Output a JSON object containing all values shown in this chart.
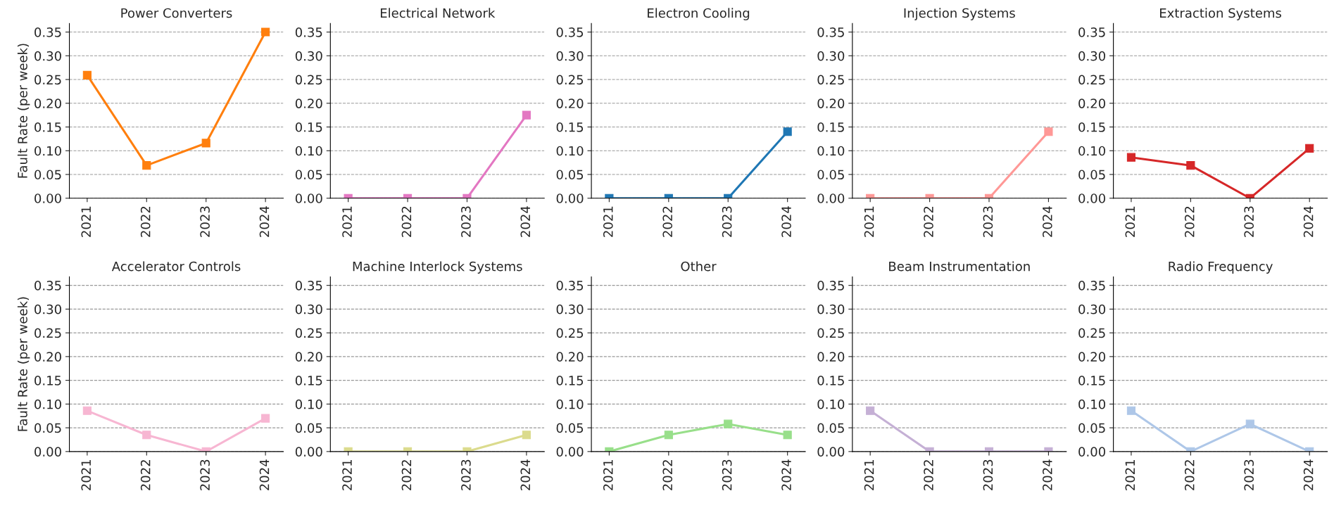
{
  "chart_data": [
    {
      "type": "line",
      "title": "Power Converters",
      "ylabel": "Fault Rate (per week)",
      "categories": [
        "2021",
        "2022",
        "2023",
        "2024"
      ],
      "series": [
        {
          "color": "#ff7f0e",
          "values": [
            0.259,
            0.069,
            0.116,
            0.35
          ]
        }
      ],
      "ylim": [
        0,
        0.368
      ],
      "yticks": [
        {
          "value": 0,
          "label": "0.00"
        },
        {
          "value": 0.05,
          "label": "0.05"
        },
        {
          "value": 0.1,
          "label": "0.10"
        },
        {
          "value": 0.15,
          "label": "0.15"
        },
        {
          "value": 0.2,
          "label": "0.20"
        },
        {
          "value": 0.25,
          "label": "0.25"
        },
        {
          "value": 0.3,
          "label": "0.30"
        },
        {
          "value": 0.35,
          "label": "0.35"
        }
      ],
      "grid": "y",
      "marker": "square",
      "line_style": "solid"
    },
    {
      "type": "line",
      "title": "Electrical Network",
      "categories": [
        "2021",
        "2022",
        "2023",
        "2024"
      ],
      "series": [
        {
          "color": "#e377c2",
          "values": [
            0,
            0,
            0,
            0.175
          ]
        }
      ],
      "ylim": [
        0,
        0.368
      ],
      "yticks": [
        {
          "value": 0,
          "label": "0.00"
        },
        {
          "value": 0.05,
          "label": "0.05"
        },
        {
          "value": 0.1,
          "label": "0.10"
        },
        {
          "value": 0.15,
          "label": "0.15"
        },
        {
          "value": 0.2,
          "label": "0.20"
        },
        {
          "value": 0.25,
          "label": "0.25"
        },
        {
          "value": 0.3,
          "label": "0.30"
        },
        {
          "value": 0.35,
          "label": "0.35"
        }
      ],
      "grid": "y",
      "marker": "square",
      "line_style": "solid"
    },
    {
      "type": "line",
      "title": "Electron Cooling",
      "categories": [
        "2021",
        "2022",
        "2023",
        "2024"
      ],
      "series": [
        {
          "color": "#1f77b4",
          "values": [
            0,
            0,
            0,
            0.14
          ]
        }
      ],
      "ylim": [
        0,
        0.368
      ],
      "yticks": [
        {
          "value": 0,
          "label": "0.00"
        },
        {
          "value": 0.05,
          "label": "0.05"
        },
        {
          "value": 0.1,
          "label": "0.10"
        },
        {
          "value": 0.15,
          "label": "0.15"
        },
        {
          "value": 0.2,
          "label": "0.20"
        },
        {
          "value": 0.25,
          "label": "0.25"
        },
        {
          "value": 0.3,
          "label": "0.30"
        },
        {
          "value": 0.35,
          "label": "0.35"
        }
      ],
      "grid": "y",
      "marker": "square",
      "line_style": "solid"
    },
    {
      "type": "line",
      "title": "Injection Systems",
      "categories": [
        "2021",
        "2022",
        "2023",
        "2024"
      ],
      "series": [
        {
          "color": "#ff9896",
          "values": [
            0,
            0,
            0,
            0.14
          ]
        }
      ],
      "ylim": [
        0,
        0.368
      ],
      "yticks": [
        {
          "value": 0,
          "label": "0.00"
        },
        {
          "value": 0.05,
          "label": "0.05"
        },
        {
          "value": 0.1,
          "label": "0.10"
        },
        {
          "value": 0.15,
          "label": "0.15"
        },
        {
          "value": 0.2,
          "label": "0.20"
        },
        {
          "value": 0.25,
          "label": "0.25"
        },
        {
          "value": 0.3,
          "label": "0.30"
        },
        {
          "value": 0.35,
          "label": "0.35"
        }
      ],
      "grid": "y",
      "marker": "square",
      "line_style": "solid"
    },
    {
      "type": "line",
      "title": "Extraction Systems",
      "categories": [
        "2021",
        "2022",
        "2023",
        "2024"
      ],
      "series": [
        {
          "color": "#d62728",
          "values": [
            0.086,
            0.069,
            0,
            0.105
          ]
        }
      ],
      "ylim": [
        0,
        0.368
      ],
      "yticks": [
        {
          "value": 0,
          "label": "0.00"
        },
        {
          "value": 0.05,
          "label": "0.05"
        },
        {
          "value": 0.1,
          "label": "0.10"
        },
        {
          "value": 0.15,
          "label": "0.15"
        },
        {
          "value": 0.2,
          "label": "0.20"
        },
        {
          "value": 0.25,
          "label": "0.25"
        },
        {
          "value": 0.3,
          "label": "0.30"
        },
        {
          "value": 0.35,
          "label": "0.35"
        }
      ],
      "grid": "y",
      "marker": "square",
      "line_style": "solid"
    },
    {
      "type": "line",
      "title": "Accelerator Controls",
      "ylabel": "Fault Rate (per week)",
      "categories": [
        "2021",
        "2022",
        "2023",
        "2024"
      ],
      "series": [
        {
          "color": "#f7b6d2",
          "values": [
            0.086,
            0.035,
            0,
            0.07
          ]
        }
      ],
      "ylim": [
        0,
        0.368
      ],
      "yticks": [
        {
          "value": 0,
          "label": "0.00"
        },
        {
          "value": 0.05,
          "label": "0.05"
        },
        {
          "value": 0.1,
          "label": "0.10"
        },
        {
          "value": 0.15,
          "label": "0.15"
        },
        {
          "value": 0.2,
          "label": "0.20"
        },
        {
          "value": 0.25,
          "label": "0.25"
        },
        {
          "value": 0.3,
          "label": "0.30"
        },
        {
          "value": 0.35,
          "label": "0.35"
        }
      ],
      "grid": "y",
      "marker": "square",
      "line_style": "solid"
    },
    {
      "type": "line",
      "title": "Machine Interlock Systems",
      "categories": [
        "2021",
        "2022",
        "2023",
        "2024"
      ],
      "series": [
        {
          "color": "#dbdb8d",
          "values": [
            0,
            0,
            0,
            0.035
          ]
        }
      ],
      "ylim": [
        0,
        0.368
      ],
      "yticks": [
        {
          "value": 0,
          "label": "0.00"
        },
        {
          "value": 0.05,
          "label": "0.05"
        },
        {
          "value": 0.1,
          "label": "0.10"
        },
        {
          "value": 0.15,
          "label": "0.15"
        },
        {
          "value": 0.2,
          "label": "0.20"
        },
        {
          "value": 0.25,
          "label": "0.25"
        },
        {
          "value": 0.3,
          "label": "0.30"
        },
        {
          "value": 0.35,
          "label": "0.35"
        }
      ],
      "grid": "y",
      "marker": "square",
      "line_style": "solid"
    },
    {
      "type": "line",
      "title": "Other",
      "categories": [
        "2021",
        "2022",
        "2023",
        "2024"
      ],
      "series": [
        {
          "color": "#98df8a",
          "values": [
            0,
            0.035,
            0.058,
            0.035
          ]
        }
      ],
      "ylim": [
        0,
        0.368
      ],
      "yticks": [
        {
          "value": 0,
          "label": "0.00"
        },
        {
          "value": 0.05,
          "label": "0.05"
        },
        {
          "value": 0.1,
          "label": "0.10"
        },
        {
          "value": 0.15,
          "label": "0.15"
        },
        {
          "value": 0.2,
          "label": "0.20"
        },
        {
          "value": 0.25,
          "label": "0.25"
        },
        {
          "value": 0.3,
          "label": "0.30"
        },
        {
          "value": 0.35,
          "label": "0.35"
        }
      ],
      "grid": "y",
      "marker": "square",
      "line_style": "solid"
    },
    {
      "type": "line",
      "title": "Beam Instrumentation",
      "categories": [
        "2021",
        "2022",
        "2023",
        "2024"
      ],
      "series": [
        {
          "color": "#c5b0d5",
          "values": [
            0.086,
            0,
            0,
            0
          ]
        }
      ],
      "ylim": [
        0,
        0.368
      ],
      "yticks": [
        {
          "value": 0,
          "label": "0.00"
        },
        {
          "value": 0.05,
          "label": "0.05"
        },
        {
          "value": 0.1,
          "label": "0.10"
        },
        {
          "value": 0.15,
          "label": "0.15"
        },
        {
          "value": 0.2,
          "label": "0.20"
        },
        {
          "value": 0.25,
          "label": "0.25"
        },
        {
          "value": 0.3,
          "label": "0.30"
        },
        {
          "value": 0.35,
          "label": "0.35"
        }
      ],
      "grid": "y",
      "marker": "square",
      "line_style": "solid"
    },
    {
      "type": "line",
      "title": "Radio Frequency",
      "categories": [
        "2021",
        "2022",
        "2023",
        "2024"
      ],
      "series": [
        {
          "color": "#aec7e8",
          "values": [
            0.086,
            0,
            0.058,
            0
          ]
        }
      ],
      "ylim": [
        0,
        0.368
      ],
      "yticks": [
        {
          "value": 0,
          "label": "0.00"
        },
        {
          "value": 0.05,
          "label": "0.05"
        },
        {
          "value": 0.1,
          "label": "0.10"
        },
        {
          "value": 0.15,
          "label": "0.15"
        },
        {
          "value": 0.2,
          "label": "0.20"
        },
        {
          "value": 0.25,
          "label": "0.25"
        },
        {
          "value": 0.3,
          "label": "0.30"
        },
        {
          "value": 0.35,
          "label": "0.35"
        }
      ],
      "grid": "y",
      "marker": "square",
      "line_style": "solid"
    }
  ]
}
